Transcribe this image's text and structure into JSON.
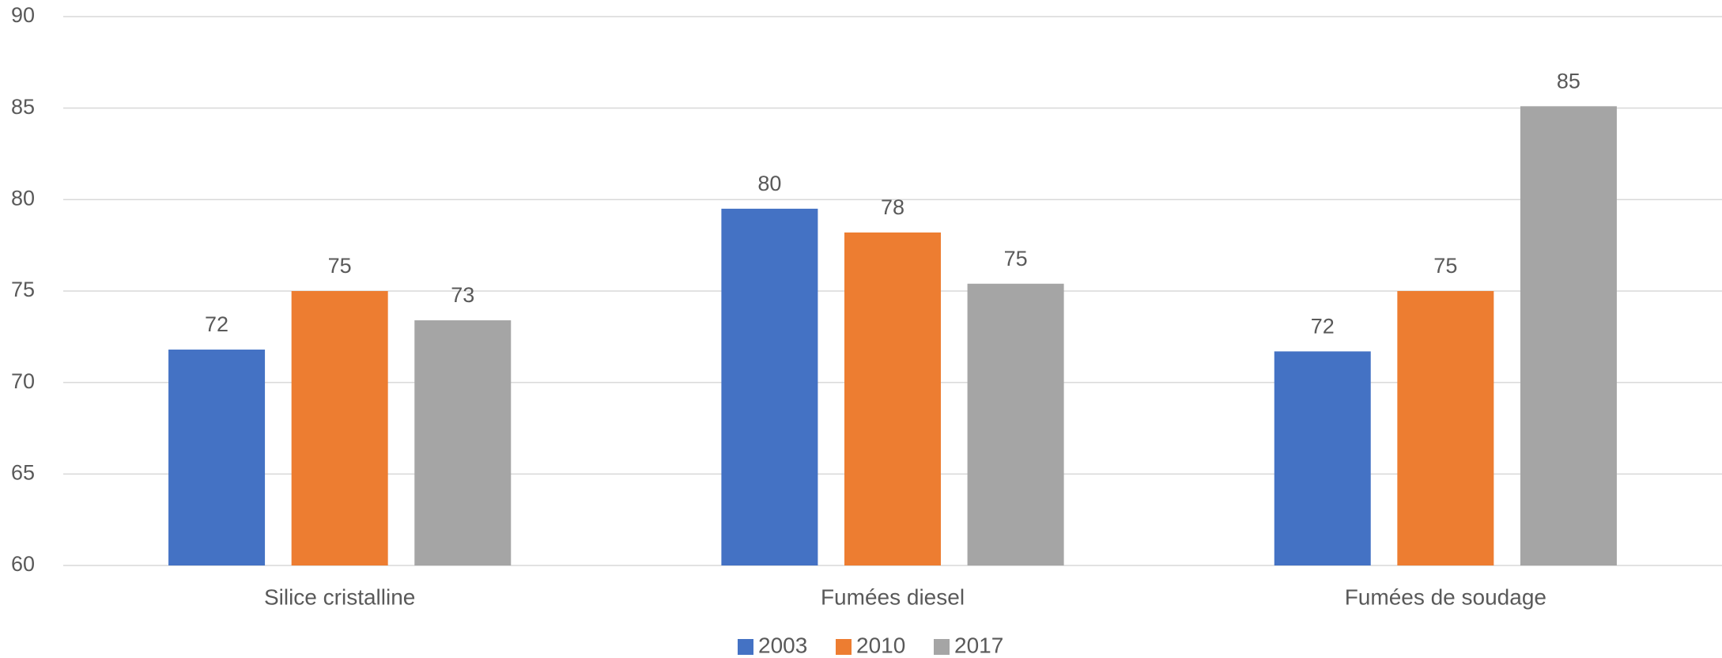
{
  "chart_data": {
    "type": "bar",
    "categories": [
      "Silice cristalline",
      "Fumées diesel",
      "Fumées de soudage"
    ],
    "series": [
      {
        "name": "2003",
        "color": "#4472c4",
        "values": [
          71.8,
          79.5,
          71.7
        ],
        "value_labels": [
          "72",
          "80",
          "72"
        ]
      },
      {
        "name": "2010",
        "color": "#ed7d31",
        "values": [
          75,
          78.2,
          75
        ],
        "value_labels": [
          "75",
          "78",
          "75"
        ]
      },
      {
        "name": "2017",
        "color": "#a5a5a5",
        "values": [
          73.4,
          75.4,
          85.1
        ],
        "value_labels": [
          "73",
          "75",
          "85"
        ]
      }
    ],
    "ylim": [
      60,
      90
    ],
    "yticks": [
      60,
      65,
      70,
      75,
      80,
      85,
      90
    ],
    "grid": true,
    "legend": "bottom"
  }
}
